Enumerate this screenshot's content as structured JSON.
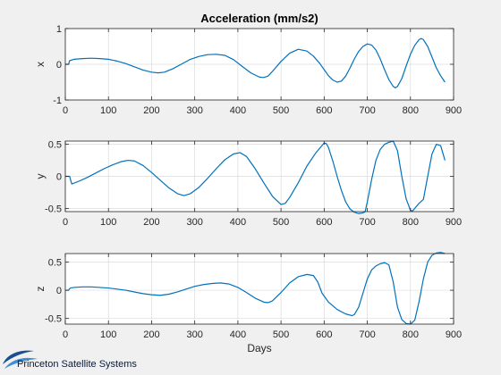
{
  "figure": {
    "background": "#f0f0f0",
    "axes_background": "#ffffff",
    "line_color": "#0072bd",
    "grid_color": "#dcdcdc"
  },
  "branding": {
    "logo_text": "Princeton Satellite Systems",
    "logo_icon": "swoosh-logo-icon",
    "logo_colors": [
      "#1c4f8f",
      "#3f8fd6"
    ]
  },
  "chart_data": [
    {
      "type": "line",
      "title": "Acceleration (mm/s2)",
      "xlabel": "",
      "ylabel": "x",
      "xlim": [
        0,
        900
      ],
      "ylim": [
        -1,
        1
      ],
      "xticks": [
        0,
        100,
        200,
        300,
        400,
        500,
        600,
        700,
        800,
        900
      ],
      "yticks": [
        -1,
        0,
        1
      ],
      "ytick_labels": [
        "-1",
        "0",
        "1"
      ],
      "grid": true,
      "series": [
        {
          "x": [
            0,
            8,
            9,
            10,
            20,
            40,
            60,
            80,
            100,
            120,
            140,
            160,
            180,
            200,
            215,
            230,
            250,
            270,
            290,
            310,
            330,
            350,
            370,
            390,
            410,
            430,
            450,
            460,
            470,
            480,
            500,
            520,
            540,
            560,
            575,
            590,
            600,
            610,
            620,
            630,
            640,
            650,
            660,
            670,
            680,
            690,
            700,
            710,
            720,
            730,
            740,
            750,
            760,
            765,
            770,
            780,
            790,
            800,
            810,
            820,
            825,
            830,
            840,
            850,
            860,
            870,
            880
          ],
          "y": [
            0,
            0,
            0.07,
            0.1,
            0.14,
            0.16,
            0.17,
            0.16,
            0.14,
            0.09,
            0.02,
            -0.07,
            -0.16,
            -0.22,
            -0.24,
            -0.22,
            -0.12,
            0.01,
            0.14,
            0.22,
            0.27,
            0.28,
            0.25,
            0.13,
            -0.06,
            -0.24,
            -0.36,
            -0.37,
            -0.33,
            -0.2,
            0.08,
            0.31,
            0.42,
            0.37,
            0.23,
            0.02,
            -0.15,
            -0.32,
            -0.44,
            -0.5,
            -0.47,
            -0.33,
            -0.1,
            0.15,
            0.36,
            0.5,
            0.57,
            0.54,
            0.4,
            0.15,
            -0.15,
            -0.43,
            -0.62,
            -0.66,
            -0.62,
            -0.4,
            -0.05,
            0.28,
            0.53,
            0.69,
            0.72,
            0.69,
            0.5,
            0.2,
            -0.1,
            -0.32,
            -0.5
          ]
        }
      ]
    },
    {
      "type": "line",
      "title": "",
      "xlabel": "",
      "ylabel": "y",
      "xlim": [
        0,
        900
      ],
      "ylim": [
        -0.55,
        0.55
      ],
      "xticks": [
        0,
        100,
        200,
        300,
        400,
        500,
        600,
        700,
        800,
        900
      ],
      "yticks": [
        -0.5,
        0,
        0.5
      ],
      "ytick_labels": [
        "-0.5",
        "0",
        "0.5"
      ],
      "grid": true,
      "series": [
        {
          "x": [
            0,
            10,
            12,
            15,
            30,
            50,
            70,
            90,
            110,
            130,
            145,
            160,
            180,
            200,
            220,
            240,
            260,
            275,
            290,
            310,
            330,
            350,
            370,
            390,
            405,
            420,
            440,
            460,
            480,
            500,
            510,
            520,
            540,
            560,
            580,
            600,
            605,
            610,
            620,
            630,
            640,
            650,
            660,
            670,
            680,
            690,
            695,
            700,
            710,
            720,
            730,
            740,
            750,
            760,
            770,
            780,
            790,
            800,
            805,
            810,
            820,
            830,
            840,
            850,
            860,
            870,
            880
          ],
          "y": [
            0,
            0,
            -0.05,
            -0.12,
            -0.08,
            -0.02,
            0.05,
            0.12,
            0.18,
            0.23,
            0.25,
            0.24,
            0.17,
            0.06,
            -0.06,
            -0.18,
            -0.27,
            -0.3,
            -0.27,
            -0.17,
            -0.03,
            0.12,
            0.26,
            0.35,
            0.37,
            0.31,
            0.12,
            -0.1,
            -0.31,
            -0.44,
            -0.42,
            -0.33,
            -0.1,
            0.16,
            0.36,
            0.52,
            0.51,
            0.45,
            0.24,
            0.0,
            -0.22,
            -0.4,
            -0.51,
            -0.56,
            -0.58,
            -0.57,
            -0.55,
            -0.4,
            -0.05,
            0.25,
            0.42,
            0.5,
            0.53,
            0.55,
            0.4,
            0.0,
            -0.35,
            -0.53,
            -0.54,
            -0.5,
            -0.42,
            -0.36,
            0.0,
            0.35,
            0.5,
            0.48,
            0.25
          ]
        }
      ]
    },
    {
      "type": "line",
      "title": "",
      "xlabel": "Days",
      "ylabel": "z",
      "xlim": [
        0,
        900
      ],
      "ylim": [
        -0.6,
        0.65
      ],
      "xticks": [
        0,
        100,
        200,
        300,
        400,
        500,
        600,
        700,
        800,
        900
      ],
      "yticks": [
        -0.5,
        0,
        0.5
      ],
      "ytick_labels": [
        "-0.5",
        "0",
        "0.5"
      ],
      "grid": true,
      "series": [
        {
          "x": [
            0,
            8,
            9,
            12,
            20,
            40,
            60,
            80,
            100,
            120,
            140,
            160,
            180,
            200,
            220,
            240,
            260,
            280,
            300,
            320,
            340,
            360,
            380,
            400,
            420,
            440,
            460,
            470,
            480,
            500,
            520,
            540,
            560,
            575,
            585,
            595,
            610,
            630,
            650,
            665,
            670,
            680,
            690,
            700,
            710,
            720,
            730,
            740,
            750,
            760,
            770,
            780,
            790,
            800,
            810,
            820,
            830,
            840,
            850,
            860,
            870,
            880
          ],
          "y": [
            0,
            0,
            0.02,
            0.04,
            0.05,
            0.06,
            0.06,
            0.05,
            0.04,
            0.02,
            0.0,
            -0.03,
            -0.06,
            -0.08,
            -0.09,
            -0.07,
            -0.03,
            0.02,
            0.07,
            0.1,
            0.12,
            0.13,
            0.11,
            0.05,
            -0.04,
            -0.14,
            -0.21,
            -0.22,
            -0.19,
            -0.04,
            0.13,
            0.24,
            0.28,
            0.26,
            0.15,
            -0.05,
            -0.21,
            -0.34,
            -0.42,
            -0.45,
            -0.43,
            -0.3,
            -0.05,
            0.2,
            0.36,
            0.43,
            0.47,
            0.49,
            0.45,
            0.15,
            -0.3,
            -0.52,
            -0.59,
            -0.6,
            -0.53,
            -0.2,
            0.2,
            0.5,
            0.62,
            0.66,
            0.67,
            0.65
          ]
        }
      ]
    }
  ]
}
